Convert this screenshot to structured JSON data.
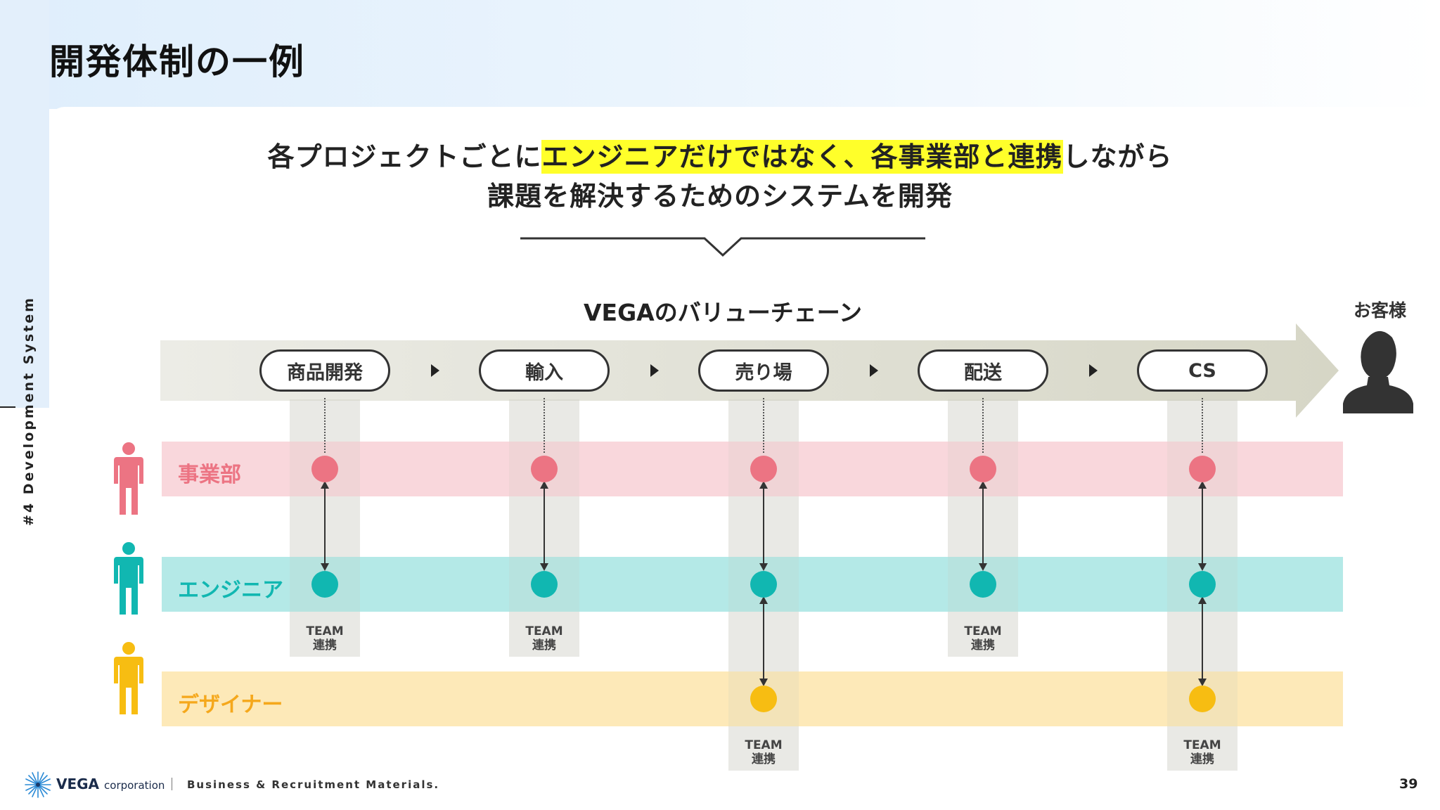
{
  "page": {
    "title": "開発体制の一例",
    "side_label": "#4 Development System",
    "number": "39"
  },
  "headline": {
    "line1_pre": "各プロジェクトごとに",
    "line1_highlight": "エンジニアだけではなく、各事業部と連携",
    "line1_post": "しながら",
    "line2": "課題を解決するためのシステムを開発"
  },
  "value_chain": {
    "title": "VEGAのバリューチェーン",
    "customer_label": "お客様",
    "stages": [
      "商品開発",
      "輸入",
      "売り場",
      "配送",
      "CS"
    ]
  },
  "rows": [
    {
      "label": "事業部",
      "color": "#ec7483",
      "band_color": "#f9d7dc",
      "text_color": "#ec7483"
    },
    {
      "label": "エンジニア",
      "color": "#11b7b1",
      "band_color": "#b4e9e7",
      "text_color": "#11b7b1"
    },
    {
      "label": "デザイナー",
      "color": "#f7bd12",
      "band_color": "#fde9b8",
      "text_color": "#f5a81c"
    }
  ],
  "team_label": {
    "line1": "TEAM",
    "line2": "連携"
  },
  "footer": {
    "brand": "VEGA",
    "brand_suffix": "corporation",
    "text": "Business & Recruitment Materials."
  },
  "colors": {
    "arrow_fill": "#e2e2d8",
    "highlight": "#ffff2a"
  }
}
